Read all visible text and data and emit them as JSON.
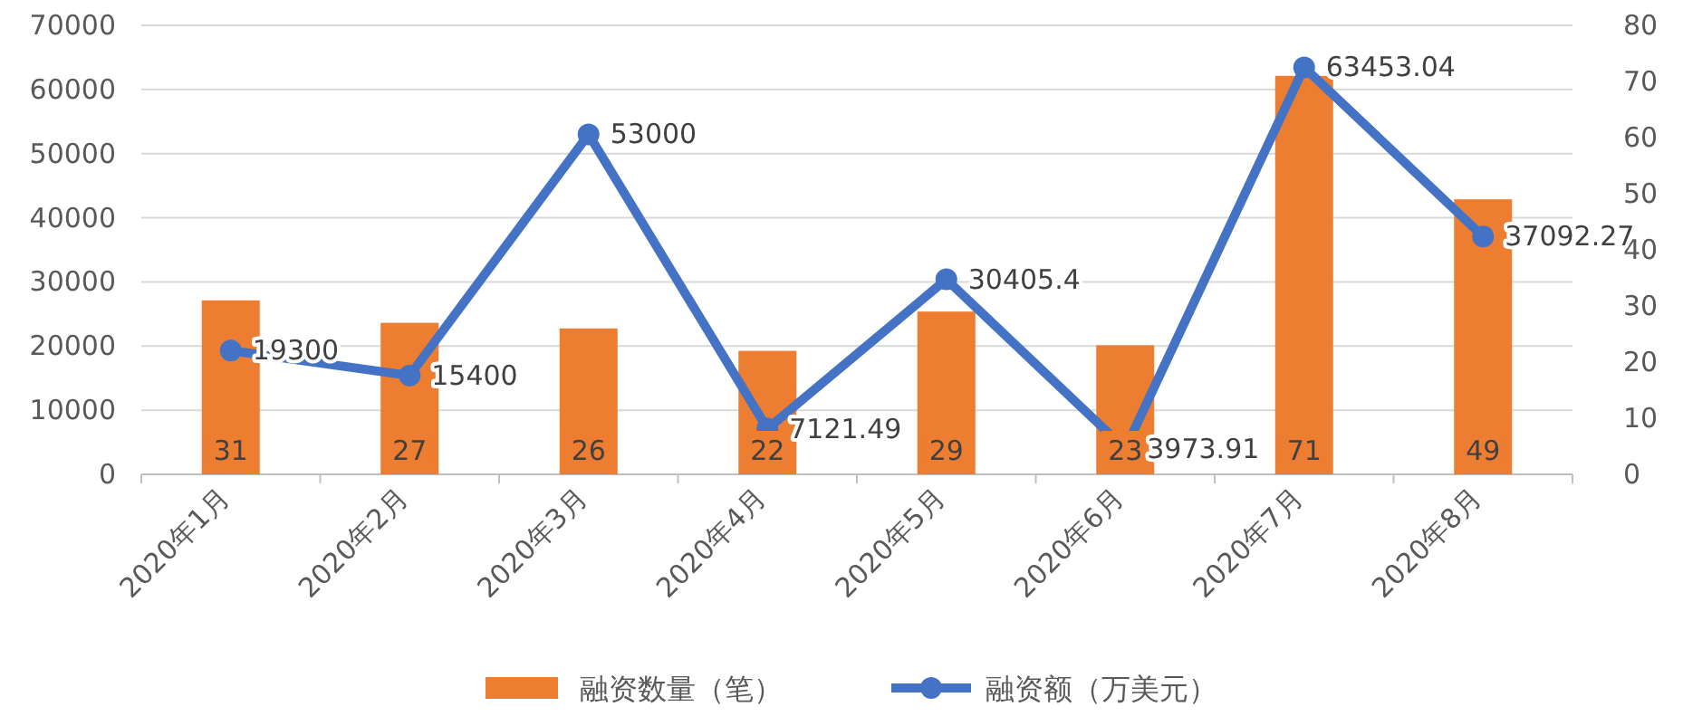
{
  "chart_data": {
    "type": "bar",
    "categories": [
      "2020年1月",
      "2020年2月",
      "2020年3月",
      "2020年4月",
      "2020年5月",
      "2020年6月",
      "2020年7月",
      "2020年8月"
    ],
    "series": [
      {
        "name": "融资数量（笔）",
        "axis": "y2",
        "color": "#ed7d31",
        "values": [
          31,
          27,
          26,
          22,
          29,
          23,
          71,
          49
        ]
      },
      {
        "name": "融资额（万美元）",
        "type": "line",
        "axis": "y",
        "color": "#4472c4",
        "values": [
          19300,
          15400,
          53000,
          7121.49,
          30405.4,
          3973.91,
          63453.04,
          37092.27
        ]
      }
    ],
    "ylim": [
      0,
      70000
    ],
    "yticks": [
      0,
      10000,
      20000,
      30000,
      40000,
      50000,
      60000,
      70000
    ],
    "y2lim": [
      0,
      80
    ],
    "y2ticks": [
      0,
      10,
      20,
      30,
      40,
      50,
      60,
      70,
      80
    ],
    "grid": "y",
    "legend": "bottom",
    "marker": "circle",
    "line_style": "solid",
    "data_labels": true
  }
}
